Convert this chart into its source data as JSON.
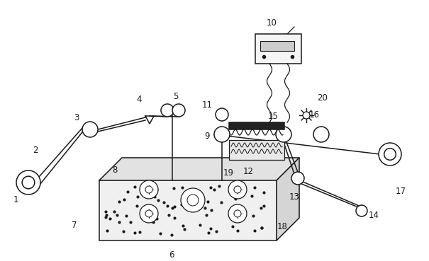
{
  "bg": "#ffffff",
  "lc": "#1a1a1a",
  "fw": 6.05,
  "fh": 3.69,
  "dpi": 100
}
